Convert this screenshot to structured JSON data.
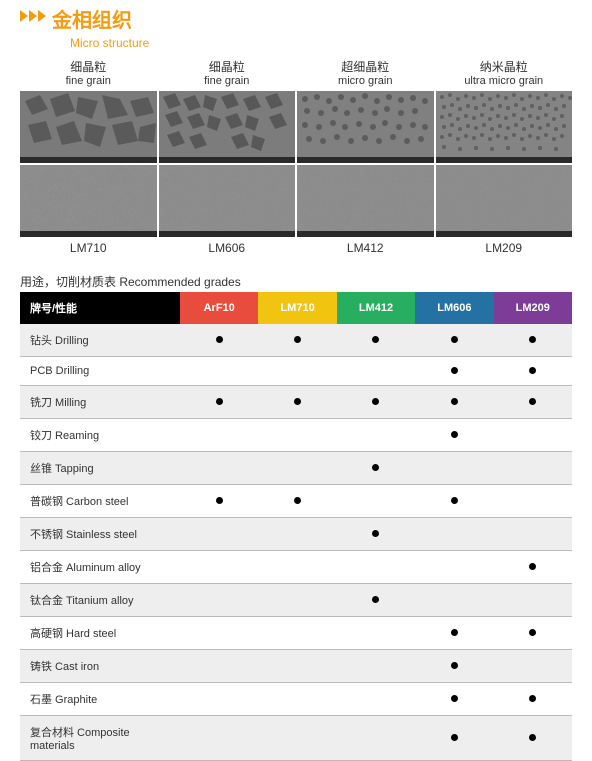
{
  "header": {
    "title_cn": "金相组织",
    "title_en": "Micro structure",
    "accent_color": "#f39c12"
  },
  "grains": [
    {
      "cn": "细晶粒",
      "en": "fine grain",
      "product": "LM710"
    },
    {
      "cn": "细晶粒",
      "en": "fine grain",
      "product": "LM606"
    },
    {
      "cn": "超细晶粒",
      "en": "micro grain",
      "product": "LM412"
    },
    {
      "cn": "纳米晶粒",
      "en": "ultra micro grain",
      "product": "LM209"
    }
  ],
  "micrograph_style": {
    "row1_bg": "#808080",
    "row2_bg": "#8a8a8a",
    "info_bar": "#2a2a2a",
    "row1_height": 72,
    "row2_height": 72
  },
  "recommended": {
    "title": "用途，切削材质表  Recommended grades",
    "row_header": "牌号/性能",
    "columns": [
      {
        "label": "ArF10",
        "color": "#e74c3c"
      },
      {
        "label": "LM710",
        "color": "#f1c40f"
      },
      {
        "label": "LM412",
        "color": "#27ae60"
      },
      {
        "label": "LM606",
        "color": "#2471a3"
      },
      {
        "label": "LM209",
        "color": "#7d3c98"
      }
    ],
    "rows": [
      {
        "label": "钻头  Drilling",
        "marks": [
          true,
          true,
          true,
          true,
          true
        ]
      },
      {
        "label": "PCB Drilling",
        "marks": [
          false,
          false,
          false,
          true,
          true
        ]
      },
      {
        "label": "铣刀  Milling",
        "marks": [
          true,
          true,
          true,
          true,
          true
        ]
      },
      {
        "label": "铰刀 Reaming",
        "marks": [
          false,
          false,
          false,
          true,
          false
        ]
      },
      {
        "label": "丝锥 Tapping",
        "marks": [
          false,
          false,
          true,
          false,
          false
        ]
      },
      {
        "label": "普碳钢 Carbon steel",
        "marks": [
          true,
          true,
          false,
          true,
          false
        ]
      },
      {
        "label": "不锈钢 Stainless steel",
        "marks": [
          false,
          false,
          true,
          false,
          false
        ]
      },
      {
        "label": "铝合金 Aluminum alloy",
        "marks": [
          false,
          false,
          false,
          false,
          true
        ]
      },
      {
        "label": "钛合金 Titanium alloy",
        "marks": [
          false,
          false,
          true,
          false,
          false
        ]
      },
      {
        "label": "高硬钢 Hard steel",
        "marks": [
          false,
          false,
          false,
          true,
          true
        ]
      },
      {
        "label": "铸铁 Cast iron",
        "marks": [
          false,
          false,
          false,
          true,
          false
        ]
      },
      {
        "label": "石墨  Graphite",
        "marks": [
          false,
          false,
          false,
          true,
          true
        ]
      },
      {
        "label": "复合材料 Composite materials",
        "marks": [
          false,
          false,
          false,
          true,
          true
        ]
      }
    ],
    "zebra_odd": "#eeeeee",
    "zebra_even": "#ffffff",
    "border_color": "#bbbbbb",
    "header_row_bg": "#000000"
  }
}
